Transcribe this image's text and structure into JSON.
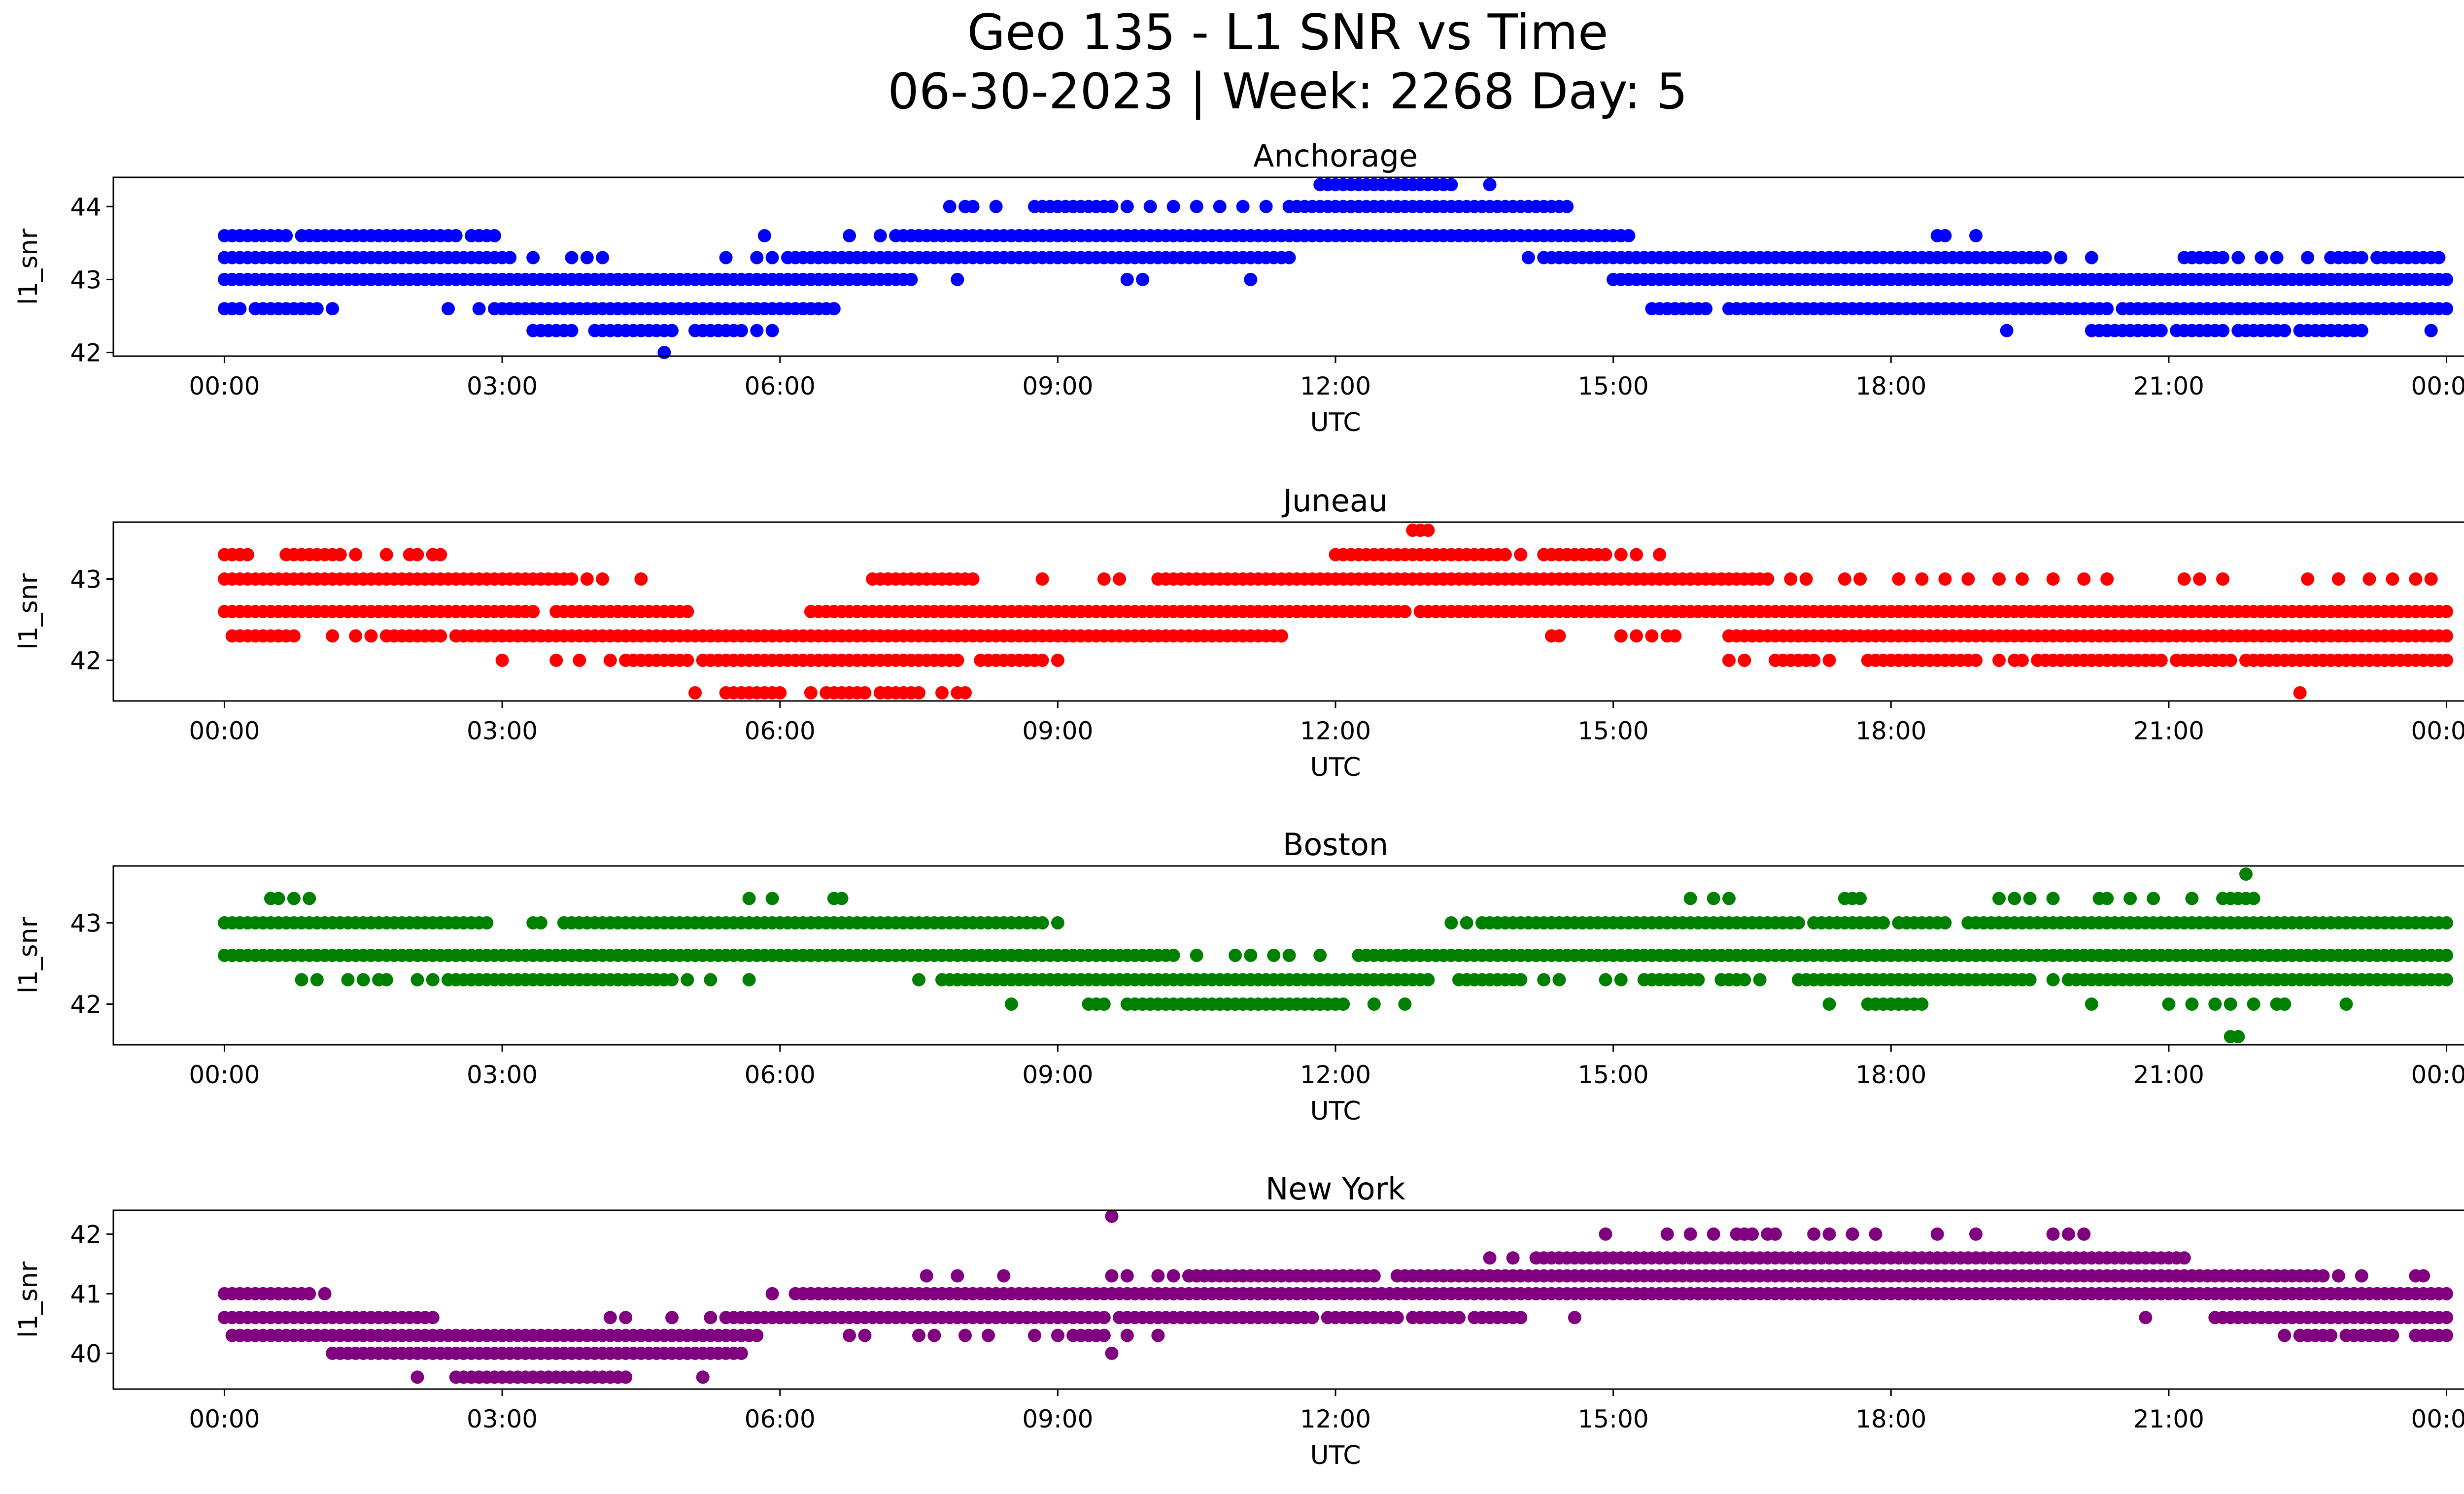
{
  "figure": {
    "title_line1": "Geo 135 - L1 SNR vs Time",
    "title_line2": "06-30-2023 | Week: 2268 Day: 5"
  },
  "chart_data": [
    {
      "type": "scatter",
      "title": "Anchorage",
      "xlabel": "UTC",
      "ylabel": "l1_snr",
      "color": "#0000ff",
      "xlim": [
        "00:00",
        "24:00"
      ],
      "ylim": [
        41.95,
        44.4
      ],
      "xticks": [
        "00:00",
        "03:00",
        "06:00",
        "09:00",
        "12:00",
        "15:00",
        "18:00",
        "21:00",
        "00:00"
      ],
      "yticks": [
        42,
        43,
        44
      ],
      "series": [
        {
          "y": 44.3,
          "x_ranges": [
            [
              "11:50",
              "13:05"
            ],
            [
              "13:10",
              "13:15"
            ]
          ],
          "x_points": [
            "13:40"
          ]
        },
        {
          "y": 44.0,
          "x_ranges": [
            [
              "08:45",
              "09:30"
            ],
            [
              "11:30",
              "14:30"
            ]
          ],
          "x_points": [
            "07:50",
            "08:00",
            "08:05",
            "08:20",
            "09:35",
            "09:45",
            "10:00",
            "10:15",
            "10:30",
            "10:45",
            "11:00",
            "11:15"
          ]
        },
        {
          "y": 43.6,
          "x_ranges": [
            [
              "00:00",
              "00:20"
            ],
            [
              "00:30",
              "00:40"
            ],
            [
              "00:55",
              "02:30"
            ],
            [
              "02:40",
              "02:55"
            ],
            [
              "07:15",
              "15:10"
            ]
          ],
          "x_points": [
            "00:25",
            "00:50",
            "05:50",
            "06:45",
            "07:05",
            "18:30",
            "18:35",
            "18:55"
          ]
        },
        {
          "y": 43.3,
          "x_ranges": [
            [
              "00:00",
              "03:05"
            ],
            [
              "06:05",
              "11:20"
            ],
            [
              "14:15",
              "15:20"
            ],
            [
              "15:20",
              "16:55"
            ],
            [
              "17:00",
              "18:45"
            ],
            [
              "18:50",
              "19:40"
            ],
            [
              "21:10",
              "21:30"
            ],
            [
              "22:50",
              "23:00"
            ],
            [
              "23:15",
              "23:55"
            ]
          ],
          "x_points": [
            "03:20",
            "03:45",
            "03:55",
            "04:05",
            "05:25",
            "05:45",
            "05:55",
            "11:25",
            "11:30",
            "14:05",
            "14:35",
            "19:50",
            "20:10",
            "21:35",
            "21:45",
            "22:00",
            "22:10",
            "22:30",
            "22:45",
            "23:05"
          ]
        },
        {
          "y": 43.0,
          "x_ranges": [
            [
              "00:00",
              "07:25"
            ],
            [
              "15:00",
              "24:00"
            ]
          ],
          "x_points": [
            "07:55",
            "09:45",
            "09:55",
            "11:05"
          ]
        },
        {
          "y": 42.6,
          "x_ranges": [
            [
              "00:00",
              "00:10"
            ],
            [
              "00:20",
              "00:55"
            ],
            [
              "02:55",
              "06:35"
            ],
            [
              "15:25",
              "16:00"
            ],
            [
              "16:15",
              "17:00"
            ],
            [
              "17:05",
              "19:40"
            ],
            [
              "19:45",
              "20:20"
            ],
            [
              "20:30",
              "24:00"
            ]
          ],
          "x_points": [
            "01:00",
            "01:10",
            "02:25",
            "02:45",
            "15:40"
          ]
        },
        {
          "y": 42.3,
          "x_ranges": [
            [
              "03:20",
              "03:45"
            ],
            [
              "04:00",
              "04:50"
            ],
            [
              "05:05",
              "05:35"
            ],
            [
              "20:10",
              "20:55"
            ],
            [
              "21:05",
              "21:35"
            ],
            [
              "21:45",
              "22:15"
            ],
            [
              "22:25",
              "23:05"
            ]
          ],
          "x_points": [
            "05:45",
            "05:55",
            "19:15",
            "23:00",
            "23:50"
          ]
        },
        {
          "y": 42.0,
          "x_ranges": [],
          "x_points": [
            "04:45"
          ]
        }
      ]
    },
    {
      "type": "scatter",
      "title": "Juneau",
      "xlabel": "UTC",
      "ylabel": "l1_snr",
      "color": "#ff0000",
      "xlim": [
        "00:00",
        "24:00"
      ],
      "ylim": [
        41.5,
        43.7
      ],
      "xticks": [
        "00:00",
        "03:00",
        "06:00",
        "09:00",
        "12:00",
        "15:00",
        "18:00",
        "21:00",
        "00:00"
      ],
      "yticks": [
        42,
        43
      ],
      "series": [
        {
          "y": 43.6,
          "x_ranges": [],
          "x_points": [
            "12:50",
            "12:55",
            "13:00"
          ]
        },
        {
          "y": 43.3,
          "x_ranges": [
            [
              "00:00",
              "00:10"
            ],
            [
              "00:40",
              "00:50"
            ],
            [
              "01:00",
              "01:10"
            ],
            [
              "12:00",
              "13:50"
            ],
            [
              "14:15",
              "14:55"
            ]
          ],
          "x_points": [
            "00:15",
            "00:55",
            "01:15",
            "01:25",
            "01:45",
            "02:00",
            "02:05",
            "02:15",
            "02:20",
            "14:00",
            "15:05",
            "15:15",
            "15:30"
          ]
        },
        {
          "y": 43.0,
          "x_ranges": [
            [
              "00:00",
              "03:45"
            ],
            [
              "07:00",
              "08:05"
            ],
            [
              "10:05",
              "16:20"
            ],
            [
              "16:25",
              "16:40"
            ]
          ],
          "x_points": [
            "03:55",
            "04:05",
            "04:30",
            "08:50",
            "09:30",
            "09:40",
            "16:55",
            "17:05",
            "17:30",
            "17:40",
            "18:05",
            "18:20",
            "18:35",
            "18:50",
            "19:10",
            "19:25",
            "19:45",
            "20:05",
            "20:20",
            "21:10",
            "21:20",
            "21:35",
            "22:30",
            "22:50",
            "23:10",
            "23:25",
            "23:40",
            "23:50"
          ]
        },
        {
          "y": 42.6,
          "x_ranges": [
            [
              "00:00",
              "03:20"
            ],
            [
              "03:35",
              "05:00"
            ],
            [
              "06:20",
              "11:35"
            ],
            [
              "11:40",
              "12:45"
            ],
            [
              "12:55",
              "13:25"
            ],
            [
              "13:30",
              "22:20"
            ],
            [
              "22:25",
              "24:00"
            ]
          ],
          "x_points": []
        },
        {
          "y": 42.3,
          "x_ranges": [
            [
              "00:05",
              "00:45"
            ],
            [
              "01:45",
              "02:15"
            ],
            [
              "02:30",
              "11:25"
            ],
            [
              "16:15",
              "24:00"
            ]
          ],
          "x_points": [
            "01:10",
            "01:25",
            "01:35",
            "02:20",
            "14:20",
            "14:25",
            "15:05",
            "15:15",
            "15:25",
            "15:35",
            "15:40"
          ]
        },
        {
          "y": 42.0,
          "x_ranges": [
            [
              "04:20",
              "05:00"
            ],
            [
              "05:10",
              "07:55"
            ],
            [
              "08:10",
              "08:50"
            ],
            [
              "16:45",
              "17:05"
            ],
            [
              "17:45",
              "18:55"
            ],
            [
              "19:35",
              "20:55"
            ],
            [
              "21:05",
              "21:40"
            ],
            [
              "21:50",
              "22:10"
            ],
            [
              "22:15",
              "22:50"
            ],
            [
              "23:00",
              "24:00"
            ]
          ],
          "x_points": [
            "03:00",
            "03:35",
            "03:50",
            "04:10",
            "09:00",
            "16:15",
            "16:25",
            "17:10",
            "17:20",
            "18:05",
            "19:10",
            "19:20",
            "19:25",
            "20:10",
            "21:30",
            "22:40",
            "22:55"
          ]
        },
        {
          "y": 41.6,
          "x_ranges": [
            [
              "05:25",
              "05:55"
            ],
            [
              "06:40",
              "06:55"
            ],
            [
              "07:05",
              "07:30"
            ]
          ],
          "x_points": [
            "05:05",
            "06:00",
            "06:20",
            "06:30",
            "06:35",
            "07:45",
            "07:55",
            "08:00",
            "22:25"
          ]
        }
      ]
    },
    {
      "type": "scatter",
      "title": "Boston",
      "xlabel": "UTC",
      "ylabel": "l1_snr",
      "color": "#008000",
      "xlim": [
        "00:00",
        "24:00"
      ],
      "ylim": [
        41.5,
        43.7
      ],
      "xticks": [
        "00:00",
        "03:00",
        "06:00",
        "09:00",
        "12:00",
        "15:00",
        "18:00",
        "21:00",
        "00:00"
      ],
      "yticks": [
        42,
        43
      ],
      "series": [
        {
          "y": 43.6,
          "x_ranges": [],
          "x_points": [
            "21:50"
          ]
        },
        {
          "y": 43.3,
          "x_ranges": [],
          "x_points": [
            "00:30",
            "00:35",
            "00:45",
            "00:55",
            "05:40",
            "05:55",
            "06:35",
            "06:40",
            "15:50",
            "16:05",
            "16:15",
            "17:30",
            "17:35",
            "17:40",
            "19:10",
            "19:20",
            "19:30",
            "19:45",
            "20:15",
            "20:20",
            "20:35",
            "20:50",
            "21:15",
            "21:35",
            "21:40",
            "21:45",
            "21:50",
            "21:55"
          ]
        },
        {
          "y": 43.0,
          "x_ranges": [
            [
              "00:00",
              "02:50"
            ],
            [
              "03:40",
              "08:50"
            ],
            [
              "13:40",
              "15:00"
            ],
            [
              "15:05",
              "17:00"
            ],
            [
              "17:10",
              "17:55"
            ],
            [
              "18:05",
              "18:35"
            ],
            [
              "18:50",
              "24:00"
            ]
          ],
          "x_points": [
            "03:20",
            "03:25",
            "09:00",
            "13:15",
            "13:25",
            "13:35",
            "14:05",
            "14:20",
            "14:30"
          ]
        },
        {
          "y": 42.6,
          "x_ranges": [
            [
              "00:00",
              "10:15"
            ],
            [
              "12:15",
              "24:00"
            ]
          ],
          "x_points": [
            "10:30",
            "10:55",
            "11:05",
            "11:20",
            "11:30",
            "11:50"
          ]
        },
        {
          "y": 42.3,
          "x_ranges": [
            [
              "02:25",
              "04:50"
            ],
            [
              "07:45",
              "13:00"
            ],
            [
              "13:20",
              "14:00"
            ],
            [
              "15:20",
              "15:55"
            ],
            [
              "16:10",
              "16:25"
            ],
            [
              "17:05",
              "19:30"
            ],
            [
              "20:00",
              "24:00"
            ]
          ],
          "x_points": [
            "00:50",
            "01:00",
            "01:20",
            "01:30",
            "01:40",
            "01:45",
            "02:05",
            "02:15",
            "05:00",
            "05:15",
            "05:40",
            "07:30",
            "14:15",
            "14:25",
            "14:55",
            "15:05",
            "16:35",
            "17:00",
            "19:45",
            "19:55"
          ]
        },
        {
          "y": 42.0,
          "x_ranges": [
            [
              "09:20",
              "09:30"
            ],
            [
              "09:45",
              "12:05"
            ],
            [
              "17:45",
              "18:20"
            ]
          ],
          "x_points": [
            "08:30",
            "12:25",
            "12:45",
            "17:20",
            "20:10",
            "21:00",
            "21:15",
            "21:30",
            "21:40",
            "21:55",
            "22:10",
            "22:15",
            "22:55"
          ]
        },
        {
          "y": 41.6,
          "x_ranges": [],
          "x_points": [
            "21:40",
            "21:45"
          ]
        }
      ]
    },
    {
      "type": "scatter",
      "title": "New York",
      "xlabel": "UTC",
      "ylabel": "l1_snr",
      "color": "#800080",
      "xlim": [
        "00:00",
        "24:00"
      ],
      "ylim": [
        39.4,
        42.4
      ],
      "xticks": [
        "00:00",
        "03:00",
        "06:00",
        "09:00",
        "12:00",
        "15:00",
        "18:00",
        "21:00",
        "00:00"
      ],
      "yticks": [
        40,
        41,
        42
      ],
      "series": [
        {
          "y": 42.3,
          "x_ranges": [],
          "x_points": [
            "09:35"
          ]
        },
        {
          "y": 42.0,
          "x_ranges": [],
          "x_points": [
            "14:55",
            "15:35",
            "15:50",
            "16:05",
            "16:20",
            "16:25",
            "16:30",
            "16:40",
            "16:45",
            "17:10",
            "17:20",
            "17:35",
            "17:50",
            "18:30",
            "18:55",
            "19:45",
            "19:55",
            "20:05"
          ]
        },
        {
          "y": 41.6,
          "x_ranges": [
            [
              "14:10",
              "21:10"
            ]
          ],
          "x_points": [
            "13:40",
            "13:55"
          ]
        },
        {
          "y": 41.3,
          "x_ranges": [
            [
              "10:25",
              "12:25"
            ],
            [
              "12:40",
              "22:40"
            ]
          ],
          "x_points": [
            "07:35",
            "07:55",
            "08:25",
            "09:35",
            "09:45",
            "10:05",
            "10:15",
            "22:50",
            "23:05",
            "23:40",
            "23:45"
          ]
        },
        {
          "y": 41.0,
          "x_ranges": [
            [
              "00:00",
              "00:55"
            ],
            [
              "06:10",
              "24:00"
            ]
          ],
          "x_points": [
            "01:05",
            "05:55"
          ]
        },
        {
          "y": 40.6,
          "x_ranges": [
            [
              "00:00",
              "02:15"
            ],
            [
              "05:25",
              "09:30"
            ],
            [
              "09:40",
              "11:45"
            ],
            [
              "11:55",
              "12:40"
            ],
            [
              "12:50",
              "13:20"
            ],
            [
              "13:30",
              "14:00"
            ],
            [
              "21:30",
              "24:00"
            ]
          ],
          "x_points": [
            "04:10",
            "04:20",
            "04:50",
            "05:15",
            "12:10",
            "14:35",
            "20:45"
          ]
        },
        {
          "y": 40.3,
          "x_ranges": [
            [
              "00:05",
              "05:45"
            ],
            [
              "22:25",
              "22:40"
            ],
            [
              "22:55",
              "23:20"
            ],
            [
              "23:40",
              "24:00"
            ]
          ],
          "x_points": [
            "06:45",
            "06:55",
            "07:30",
            "07:40",
            "08:00",
            "08:15",
            "08:45",
            "09:00",
            "09:10",
            "09:15",
            "09:20",
            "09:25",
            "09:30",
            "09:45",
            "10:05",
            "22:15",
            "22:30",
            "22:45",
            "23:25"
          ]
        },
        {
          "y": 40.0,
          "x_ranges": [
            [
              "01:10",
              "05:35"
            ]
          ],
          "x_points": [
            "09:35"
          ]
        },
        {
          "y": 39.6,
          "x_ranges": [
            [
              "02:30",
              "04:20"
            ]
          ],
          "x_points": [
            "02:05",
            "05:10"
          ]
        }
      ]
    }
  ]
}
